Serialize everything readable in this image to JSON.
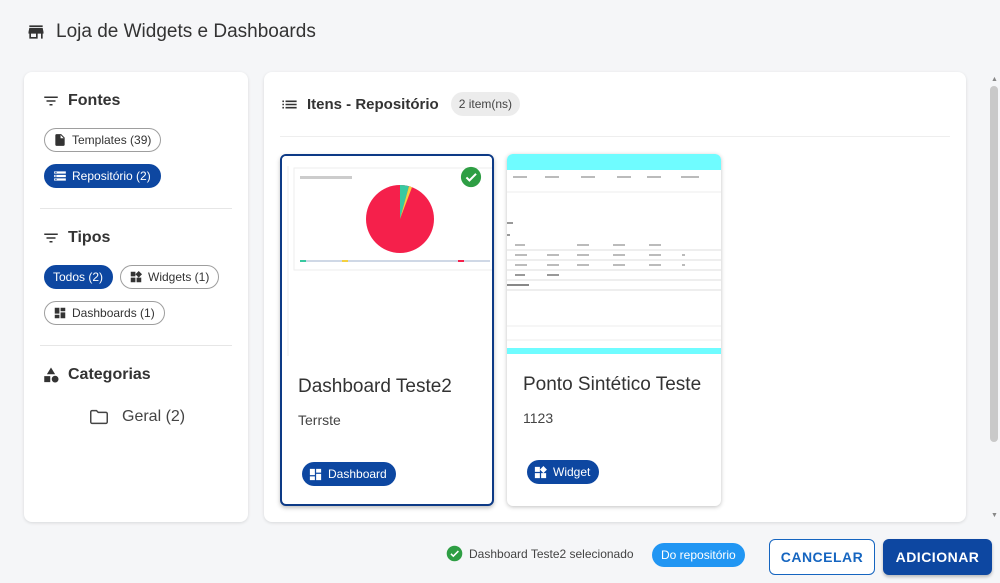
{
  "dialog": {
    "title": "Loja de Widgets e Dashboards"
  },
  "sidebar": {
    "sources": {
      "title": "Fontes",
      "chips": [
        {
          "label": "Templates (39)",
          "selected": false,
          "icon": "document-icon"
        },
        {
          "label": "Repositório (2)",
          "selected": true,
          "icon": "storage-icon"
        }
      ]
    },
    "types": {
      "title": "Tipos",
      "chips": [
        {
          "label": "Todos (2)",
          "selected": true
        },
        {
          "label": "Widgets (1)",
          "selected": false,
          "icon": "widgets-icon"
        },
        {
          "label": "Dashboards (1)",
          "selected": false,
          "icon": "dashboard-icon"
        }
      ]
    },
    "categories": {
      "title": "Categorias",
      "items": [
        {
          "label": "Geral (2)",
          "icon": "folder-icon"
        }
      ]
    }
  },
  "main": {
    "title": "Itens - Repositório",
    "count": "2 item(ns)",
    "cards": [
      {
        "title": "Dashboard Teste2",
        "description": "Terrste",
        "type": "Dashboard",
        "selected": true
      },
      {
        "title": "Ponto Sintético Teste",
        "description": "1123",
        "type": "Widget",
        "selected": false
      }
    ]
  },
  "footer": {
    "status": "Dashboard Teste2 selecionado",
    "source_badge": "Do repositório",
    "cancel_label": "CANCELAR",
    "add_label": "ADICIONAR"
  },
  "colors": {
    "primary": "#0d47a1",
    "accent": "#2196f3",
    "success": "#2e9e44",
    "pie_main": "#f5204b",
    "thumb_header": "#6ffcff"
  }
}
